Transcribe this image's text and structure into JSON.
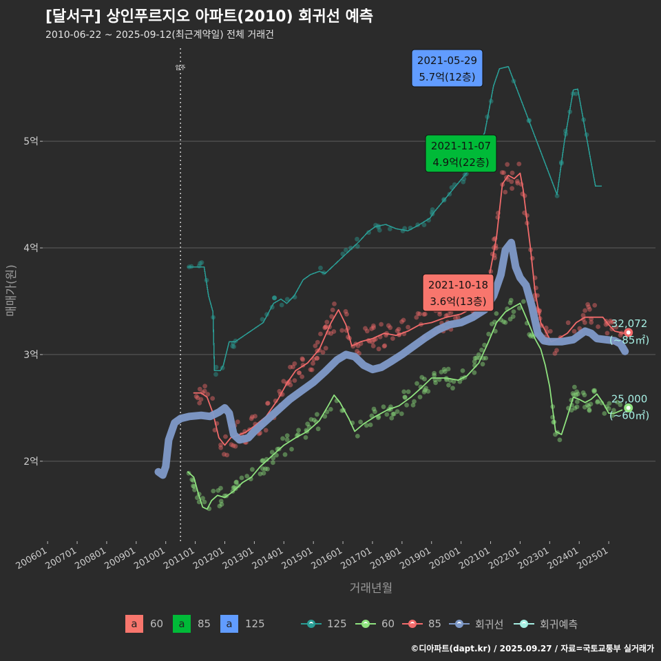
{
  "header": {
    "title": "[달서구] 상인푸르지오 아파트(2010) 회귀선 예측",
    "subtitle": "2010-06-22 ~ 2025-09-12(최근계약일) 전체 거래건"
  },
  "footer": "©디아파트(dapt.kr) / 2025.09.27 / 자료=국토교통부 실거래가",
  "colors": {
    "background": "#2b2b2b",
    "s60": "#f26b6b",
    "s85": "#8fe37f",
    "s125": "#2a9d95",
    "regression": "#7f9ac9",
    "forecast": "#a6efe3"
  },
  "legend": {
    "boxes": [
      {
        "key": "a",
        "label": "60",
        "color": "#f8766d"
      },
      {
        "key": "a",
        "label": "85",
        "color": "#00ba38"
      },
      {
        "key": "a",
        "label": "125",
        "color": "#619cff"
      }
    ],
    "lines": [
      {
        "label": "125",
        "color": "#2a9d95"
      },
      {
        "label": "60",
        "color": "#8fe37f"
      },
      {
        "label": "85",
        "color": "#f26b6b"
      },
      {
        "label": "회귀선",
        "color": "#7f9ac9"
      },
      {
        "label": "회귀예측",
        "color": "#a6efe3"
      }
    ]
  },
  "chart_data": {
    "type": "line",
    "xlabel": "거래년월",
    "ylabel": "매매가(원)",
    "x_ticks": [
      "200601",
      "200701",
      "200801",
      "200901",
      "201001",
      "201101",
      "201201",
      "201301",
      "201401",
      "201501",
      "201601",
      "201701",
      "201801",
      "201901",
      "202001",
      "202101",
      "202201",
      "202301",
      "202401",
      "202501"
    ],
    "y_ticks": [
      {
        "value": 2,
        "label": "2억"
      },
      {
        "value": 3,
        "label": "3억"
      },
      {
        "value": 4,
        "label": "4억"
      },
      {
        "value": 5,
        "label": "5억"
      }
    ],
    "xlim": [
      "2005-11",
      "2026-08"
    ],
    "ylim": [
      1.25,
      5.95
    ],
    "grid": true,
    "vline": {
      "date": "2010-07",
      "label": "입주"
    },
    "series": [
      {
        "name": "125",
        "color": "#2a9d95",
        "points": [
          [
            2010.75,
            3.82
          ],
          [
            2011.3,
            3.82
          ],
          [
            2011.45,
            3.55
          ],
          [
            2011.6,
            3.4
          ],
          [
            2011.65,
            2.85
          ],
          [
            2011.85,
            2.85
          ],
          [
            2011.95,
            2.9
          ],
          [
            2012.15,
            3.12
          ],
          [
            2012.35,
            3.12
          ],
          [
            2013.3,
            3.3
          ],
          [
            2013.65,
            3.48
          ],
          [
            2013.9,
            3.52
          ],
          [
            2014.1,
            3.48
          ],
          [
            2014.35,
            3.55
          ],
          [
            2014.65,
            3.7
          ],
          [
            2014.9,
            3.75
          ],
          [
            2015.2,
            3.78
          ],
          [
            2015.4,
            3.76
          ],
          [
            2016.55,
            4.06
          ],
          [
            2016.85,
            4.15
          ],
          [
            2017.1,
            4.2
          ],
          [
            2017.45,
            4.22
          ],
          [
            2017.8,
            4.18
          ],
          [
            2018.2,
            4.16
          ],
          [
            2018.6,
            4.22
          ],
          [
            2018.95,
            4.28
          ],
          [
            2019.1,
            4.34
          ],
          [
            2020.3,
            4.74
          ],
          [
            2020.55,
            4.95
          ],
          [
            2020.8,
            5.08
          ],
          [
            2020.95,
            5.3
          ],
          [
            2021.1,
            5.52
          ],
          [
            2021.3,
            5.68
          ],
          [
            2021.6,
            5.7
          ],
          [
            2023.25,
            4.5
          ],
          [
            2023.5,
            5.0
          ],
          [
            2023.8,
            5.48
          ],
          [
            2023.95,
            5.49
          ],
          [
            2024.55,
            4.58
          ],
          [
            2024.75,
            4.58
          ]
        ]
      },
      {
        "name": "60",
        "color": "#8fe37f",
        "points": [
          [
            2010.75,
            1.9
          ],
          [
            2010.95,
            1.85
          ],
          [
            2011.1,
            1.7
          ],
          [
            2011.25,
            1.57
          ],
          [
            2011.4,
            1.55
          ],
          [
            2011.55,
            1.63
          ],
          [
            2011.75,
            1.68
          ],
          [
            2012.0,
            1.66
          ],
          [
            2012.3,
            1.72
          ],
          [
            2012.6,
            1.8
          ],
          [
            2012.9,
            1.85
          ],
          [
            2013.2,
            1.95
          ],
          [
            2013.6,
            2.05
          ],
          [
            2014.0,
            2.15
          ],
          [
            2014.4,
            2.22
          ],
          [
            2014.8,
            2.28
          ],
          [
            2015.2,
            2.38
          ],
          [
            2015.5,
            2.52
          ],
          [
            2015.7,
            2.62
          ],
          [
            2015.9,
            2.55
          ],
          [
            2016.2,
            2.4
          ],
          [
            2016.4,
            2.28
          ],
          [
            2016.7,
            2.35
          ],
          [
            2017.1,
            2.42
          ],
          [
            2017.5,
            2.48
          ],
          [
            2017.9,
            2.52
          ],
          [
            2018.3,
            2.6
          ],
          [
            2018.7,
            2.7
          ],
          [
            2019.0,
            2.78
          ],
          [
            2019.5,
            2.78
          ],
          [
            2019.9,
            2.76
          ],
          [
            2020.2,
            2.8
          ],
          [
            2020.6,
            2.92
          ],
          [
            2020.9,
            3.1
          ],
          [
            2021.2,
            3.3
          ],
          [
            2021.5,
            3.4
          ],
          [
            2021.8,
            3.45
          ],
          [
            2022.0,
            3.48
          ],
          [
            2022.2,
            3.35
          ],
          [
            2022.5,
            3.15
          ],
          [
            2022.7,
            3.05
          ],
          [
            2022.85,
            2.9
          ],
          [
            2023.0,
            2.7
          ],
          [
            2023.2,
            2.28
          ],
          [
            2023.4,
            2.25
          ],
          [
            2023.6,
            2.42
          ],
          [
            2023.8,
            2.6
          ],
          [
            2024.0,
            2.58
          ],
          [
            2024.2,
            2.55
          ],
          [
            2024.4,
            2.58
          ],
          [
            2024.6,
            2.63
          ],
          [
            2024.8,
            2.55
          ],
          [
            2025.0,
            2.45
          ],
          [
            2025.2,
            2.45
          ],
          [
            2025.45,
            2.48
          ]
        ]
      },
      {
        "name": "85",
        "color": "#f26b6b",
        "points": [
          [
            2010.95,
            2.64
          ],
          [
            2011.2,
            2.64
          ],
          [
            2011.4,
            2.6
          ],
          [
            2011.6,
            2.45
          ],
          [
            2011.8,
            2.22
          ],
          [
            2012.0,
            2.15
          ],
          [
            2012.2,
            2.22
          ],
          [
            2012.4,
            2.24
          ],
          [
            2012.7,
            2.27
          ],
          [
            2013.0,
            2.33
          ],
          [
            2013.4,
            2.42
          ],
          [
            2013.8,
            2.58
          ],
          [
            2014.1,
            2.73
          ],
          [
            2014.4,
            2.85
          ],
          [
            2014.8,
            2.92
          ],
          [
            2015.2,
            3.05
          ],
          [
            2015.6,
            3.3
          ],
          [
            2015.85,
            3.42
          ],
          [
            2016.1,
            3.28
          ],
          [
            2016.3,
            3.08
          ],
          [
            2016.6,
            3.12
          ],
          [
            2017.0,
            3.15
          ],
          [
            2017.4,
            3.2
          ],
          [
            2017.8,
            3.18
          ],
          [
            2018.2,
            3.22
          ],
          [
            2018.6,
            3.28
          ],
          [
            2019.0,
            3.3
          ],
          [
            2019.5,
            3.35
          ],
          [
            2020.0,
            3.38
          ],
          [
            2020.5,
            3.45
          ],
          [
            2020.9,
            3.65
          ],
          [
            2021.2,
            4.1
          ],
          [
            2021.4,
            4.6
          ],
          [
            2021.6,
            4.68
          ],
          [
            2021.8,
            4.65
          ],
          [
            2022.0,
            4.7
          ],
          [
            2022.1,
            4.55
          ],
          [
            2022.35,
            4.0
          ],
          [
            2022.5,
            3.6
          ],
          [
            2022.7,
            3.3
          ],
          [
            2022.9,
            3.2
          ],
          [
            2023.05,
            3.12
          ],
          [
            2023.3,
            3.15
          ],
          [
            2023.6,
            3.2
          ],
          [
            2023.9,
            3.3
          ],
          [
            2024.2,
            3.35
          ],
          [
            2024.5,
            3.35
          ],
          [
            2024.8,
            3.35
          ],
          [
            2025.0,
            3.28
          ],
          [
            2025.2,
            3.22
          ],
          [
            2025.5,
            3.2
          ]
        ]
      },
      {
        "name": "회귀선",
        "color": "#7f9ac9",
        "points": [
          [
            2009.75,
            1.9
          ],
          [
            2009.9,
            1.87
          ],
          [
            2010.0,
            1.95
          ],
          [
            2010.1,
            2.2
          ],
          [
            2010.3,
            2.36
          ],
          [
            2010.5,
            2.4
          ],
          [
            2010.8,
            2.42
          ],
          [
            2011.2,
            2.43
          ],
          [
            2011.5,
            2.42
          ],
          [
            2011.8,
            2.46
          ],
          [
            2012.0,
            2.5
          ],
          [
            2012.15,
            2.45
          ],
          [
            2012.3,
            2.25
          ],
          [
            2012.5,
            2.2
          ],
          [
            2012.8,
            2.22
          ],
          [
            2013.0,
            2.28
          ],
          [
            2013.4,
            2.38
          ],
          [
            2013.8,
            2.48
          ],
          [
            2014.2,
            2.58
          ],
          [
            2014.6,
            2.66
          ],
          [
            2015.0,
            2.74
          ],
          [
            2015.4,
            2.84
          ],
          [
            2015.8,
            2.95
          ],
          [
            2016.1,
            3.0
          ],
          [
            2016.4,
            2.98
          ],
          [
            2016.7,
            2.9
          ],
          [
            2017.0,
            2.86
          ],
          [
            2017.3,
            2.88
          ],
          [
            2017.6,
            2.93
          ],
          [
            2018.0,
            3.0
          ],
          [
            2018.4,
            3.08
          ],
          [
            2018.8,
            3.16
          ],
          [
            2019.2,
            3.23
          ],
          [
            2019.6,
            3.28
          ],
          [
            2020.0,
            3.3
          ],
          [
            2020.4,
            3.35
          ],
          [
            2020.8,
            3.42
          ],
          [
            2021.1,
            3.55
          ],
          [
            2021.35,
            3.75
          ],
          [
            2021.5,
            3.98
          ],
          [
            2021.7,
            4.05
          ],
          [
            2021.85,
            3.82
          ],
          [
            2022.0,
            3.72
          ],
          [
            2022.2,
            3.65
          ],
          [
            2022.4,
            3.45
          ],
          [
            2022.6,
            3.2
          ],
          [
            2022.8,
            3.13
          ],
          [
            2023.0,
            3.12
          ],
          [
            2023.4,
            3.12
          ],
          [
            2023.8,
            3.14
          ],
          [
            2024.0,
            3.18
          ],
          [
            2024.2,
            3.22
          ],
          [
            2024.4,
            3.2
          ],
          [
            2024.6,
            3.15
          ],
          [
            2024.9,
            3.14
          ],
          [
            2025.2,
            3.13
          ],
          [
            2025.4,
            3.1
          ],
          [
            2025.55,
            3.03
          ]
        ]
      }
    ],
    "forecast": [
      {
        "date": "2025-09",
        "value": 3.2072,
        "label": "32,072",
        "area": "(~85㎡)",
        "color": "#f26b6b"
      },
      {
        "date": "2025-09",
        "value": 2.5,
        "label": "25,000",
        "area": "(~60㎡)",
        "color": "#8fe37f"
      }
    ],
    "annotations": [
      {
        "date": "2021-05-29",
        "price": "5.7억(12층)",
        "box_color": "#619cff",
        "text_color": "#111111"
      },
      {
        "date": "2021-11-07",
        "price": "4.9억(22층)",
        "box_color": "#00ba38",
        "text_color": "#111111"
      },
      {
        "date": "2021-10-18",
        "price": "3.6억(13층)",
        "box_color": "#f8766d",
        "text_color": "#111111"
      }
    ]
  }
}
